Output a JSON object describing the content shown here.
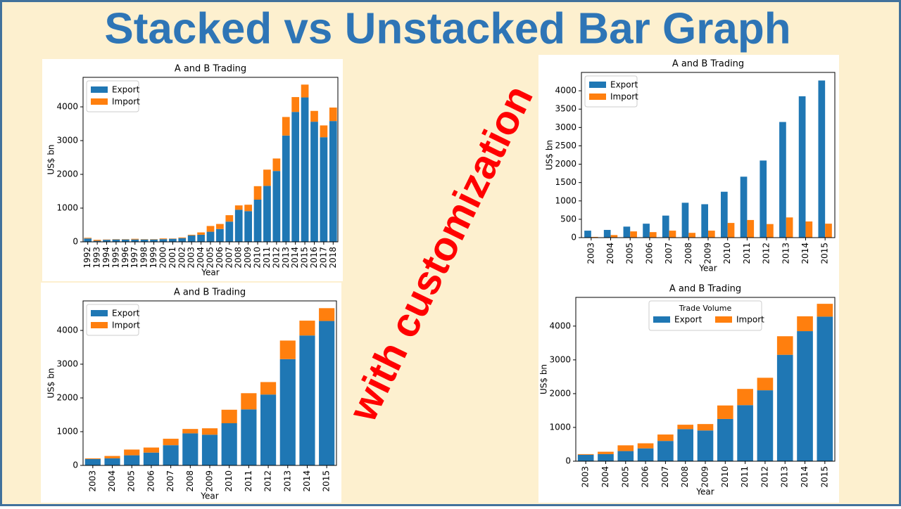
{
  "title": "Stacked vs Unstacked Bar Graph",
  "annotation": "with customization",
  "chart_data": [
    {
      "type": "bar",
      "stacked": true,
      "title": "A and B Trading",
      "x_label": "Year",
      "y_label": "US$ bn",
      "categories": [
        "1992",
        "1993",
        "1994",
        "1995",
        "1996",
        "1997",
        "1998",
        "1999",
        "2000",
        "2001",
        "2002",
        "2003",
        "2004",
        "2005",
        "2006",
        "2007",
        "2008",
        "2009",
        "2010",
        "2011",
        "2012",
        "2013",
        "2014",
        "2015",
        "2016",
        "2017",
        "2018"
      ],
      "series": [
        {
          "name": "Export",
          "color": "#1f77b4",
          "values": [
            100,
            30,
            60,
            70,
            70,
            70,
            70,
            70,
            80,
            90,
            110,
            190,
            210,
            300,
            380,
            600,
            950,
            910,
            1250,
            1660,
            2100,
            3150,
            3850,
            4280,
            3560,
            3100,
            3580
          ]
        },
        {
          "name": "Import",
          "color": "#ff7f0e",
          "values": [
            20,
            30,
            10,
            10,
            10,
            20,
            10,
            10,
            20,
            10,
            20,
            20,
            70,
            170,
            150,
            190,
            130,
            190,
            400,
            480,
            370,
            550,
            440,
            380,
            320,
            350,
            400
          ]
        }
      ],
      "ylim": [
        0,
        4875
      ],
      "yticks": [
        0,
        1000,
        2000,
        3000,
        4000
      ],
      "grid": false,
      "legend": "upper-left"
    },
    {
      "type": "bar",
      "stacked": false,
      "title": "A and B Trading",
      "x_label": "Year",
      "y_label": "US$ bn",
      "categories": [
        "2003",
        "2004",
        "2005",
        "2006",
        "2007",
        "2008",
        "2009",
        "2010",
        "2011",
        "2012",
        "2013",
        "2014",
        "2015"
      ],
      "series": [
        {
          "name": "Export",
          "color": "#1f77b4",
          "values": [
            190,
            210,
            300,
            380,
            600,
            950,
            910,
            1250,
            1660,
            2100,
            3150,
            3850,
            4280
          ]
        },
        {
          "name": "Import",
          "color": "#ff7f0e",
          "values": [
            20,
            70,
            170,
            150,
            190,
            130,
            190,
            400,
            480,
            370,
            550,
            440,
            380
          ]
        }
      ],
      "ylim": [
        0,
        4500
      ],
      "yticks": [
        0,
        500,
        1000,
        1500,
        2000,
        2500,
        3000,
        3500,
        4000
      ],
      "grid": false,
      "legend": "upper-left"
    },
    {
      "type": "bar",
      "stacked": true,
      "title": "A and B Trading",
      "x_label": "Year",
      "y_label": "US$ bn",
      "categories": [
        "2003",
        "2004",
        "2005",
        "2006",
        "2007",
        "2008",
        "2009",
        "2010",
        "2011",
        "2012",
        "2013",
        "2014",
        "2015"
      ],
      "series": [
        {
          "name": "Export",
          "color": "#1f77b4",
          "values": [
            190,
            210,
            300,
            380,
            600,
            950,
            910,
            1250,
            1660,
            2100,
            3150,
            3850,
            4280
          ]
        },
        {
          "name": "Import",
          "color": "#ff7f0e",
          "values": [
            20,
            70,
            170,
            150,
            190,
            130,
            190,
            400,
            480,
            370,
            550,
            440,
            380
          ]
        }
      ],
      "ylim": [
        0,
        4875
      ],
      "yticks": [
        0,
        1000,
        2000,
        3000,
        4000
      ],
      "grid": false,
      "legend": "upper-left"
    },
    {
      "type": "bar",
      "stacked": true,
      "title": "A and B Trading",
      "x_label": "Year",
      "y_label": "US$ bn",
      "categories": [
        "2003",
        "2004",
        "2005",
        "2006",
        "2007",
        "2008",
        "2009",
        "2010",
        "2011",
        "2012",
        "2013",
        "2014",
        "2015"
      ],
      "series": [
        {
          "name": "Export",
          "color": "#1f77b4",
          "values": [
            190,
            210,
            300,
            380,
            600,
            950,
            910,
            1250,
            1660,
            2100,
            3150,
            3850,
            4280
          ]
        },
        {
          "name": "Import",
          "color": "#ff7f0e",
          "values": [
            20,
            70,
            170,
            150,
            190,
            130,
            190,
            400,
            480,
            370,
            550,
            440,
            380
          ]
        }
      ],
      "ylim": [
        0,
        4850
      ],
      "yticks": [
        0,
        1000,
        2000,
        3000,
        4000
      ],
      "grid": false,
      "legend": "upper-center",
      "legend_title": "Trade Volume"
    }
  ]
}
